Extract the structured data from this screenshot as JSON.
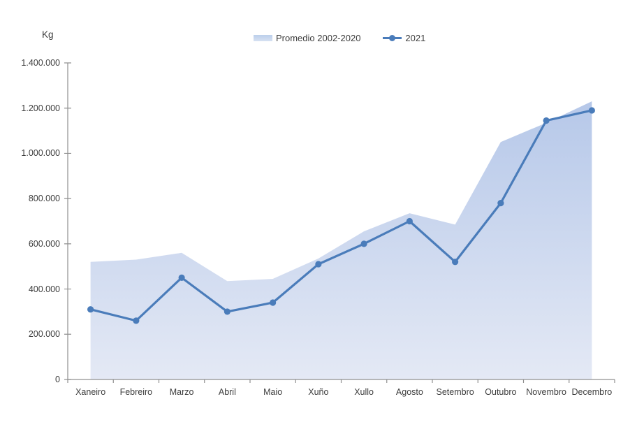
{
  "chart_data": {
    "type": "area+line",
    "y_axis_title": "Kg",
    "categories": [
      "Xaneiro",
      "Febreiro",
      "Marzo",
      "Abril",
      "Maio",
      "Xuño",
      "Xullo",
      "Agosto",
      "Setembro",
      "Outubro",
      "Novembro",
      "Decembro"
    ],
    "series": [
      {
        "name": "Promedio 2002-2020",
        "type": "area",
        "color_top": "#b6c8e9",
        "color_bottom": "#e4e9f5",
        "values": [
          520000,
          530000,
          560000,
          435000,
          445000,
          535000,
          655000,
          735000,
          685000,
          1050000,
          1135000,
          1230000
        ]
      },
      {
        "name": "2021",
        "type": "line",
        "color": "#4a7cba",
        "marker": "circle",
        "values": [
          310000,
          260000,
          450000,
          300000,
          340000,
          510000,
          600000,
          700000,
          520000,
          780000,
          1145000,
          1190000
        ]
      }
    ],
    "ylim": [
      0,
      1400000
    ],
    "y_tick_step": 200000,
    "y_tick_labels": [
      "0",
      "200.000",
      "400.000",
      "600.000",
      "800.000",
      "1.000.000",
      "1.200.000",
      "1.400.000"
    ],
    "legend_position": "top",
    "grid": false,
    "axis_color": "#909090",
    "text_color": "#3d3d3d"
  }
}
